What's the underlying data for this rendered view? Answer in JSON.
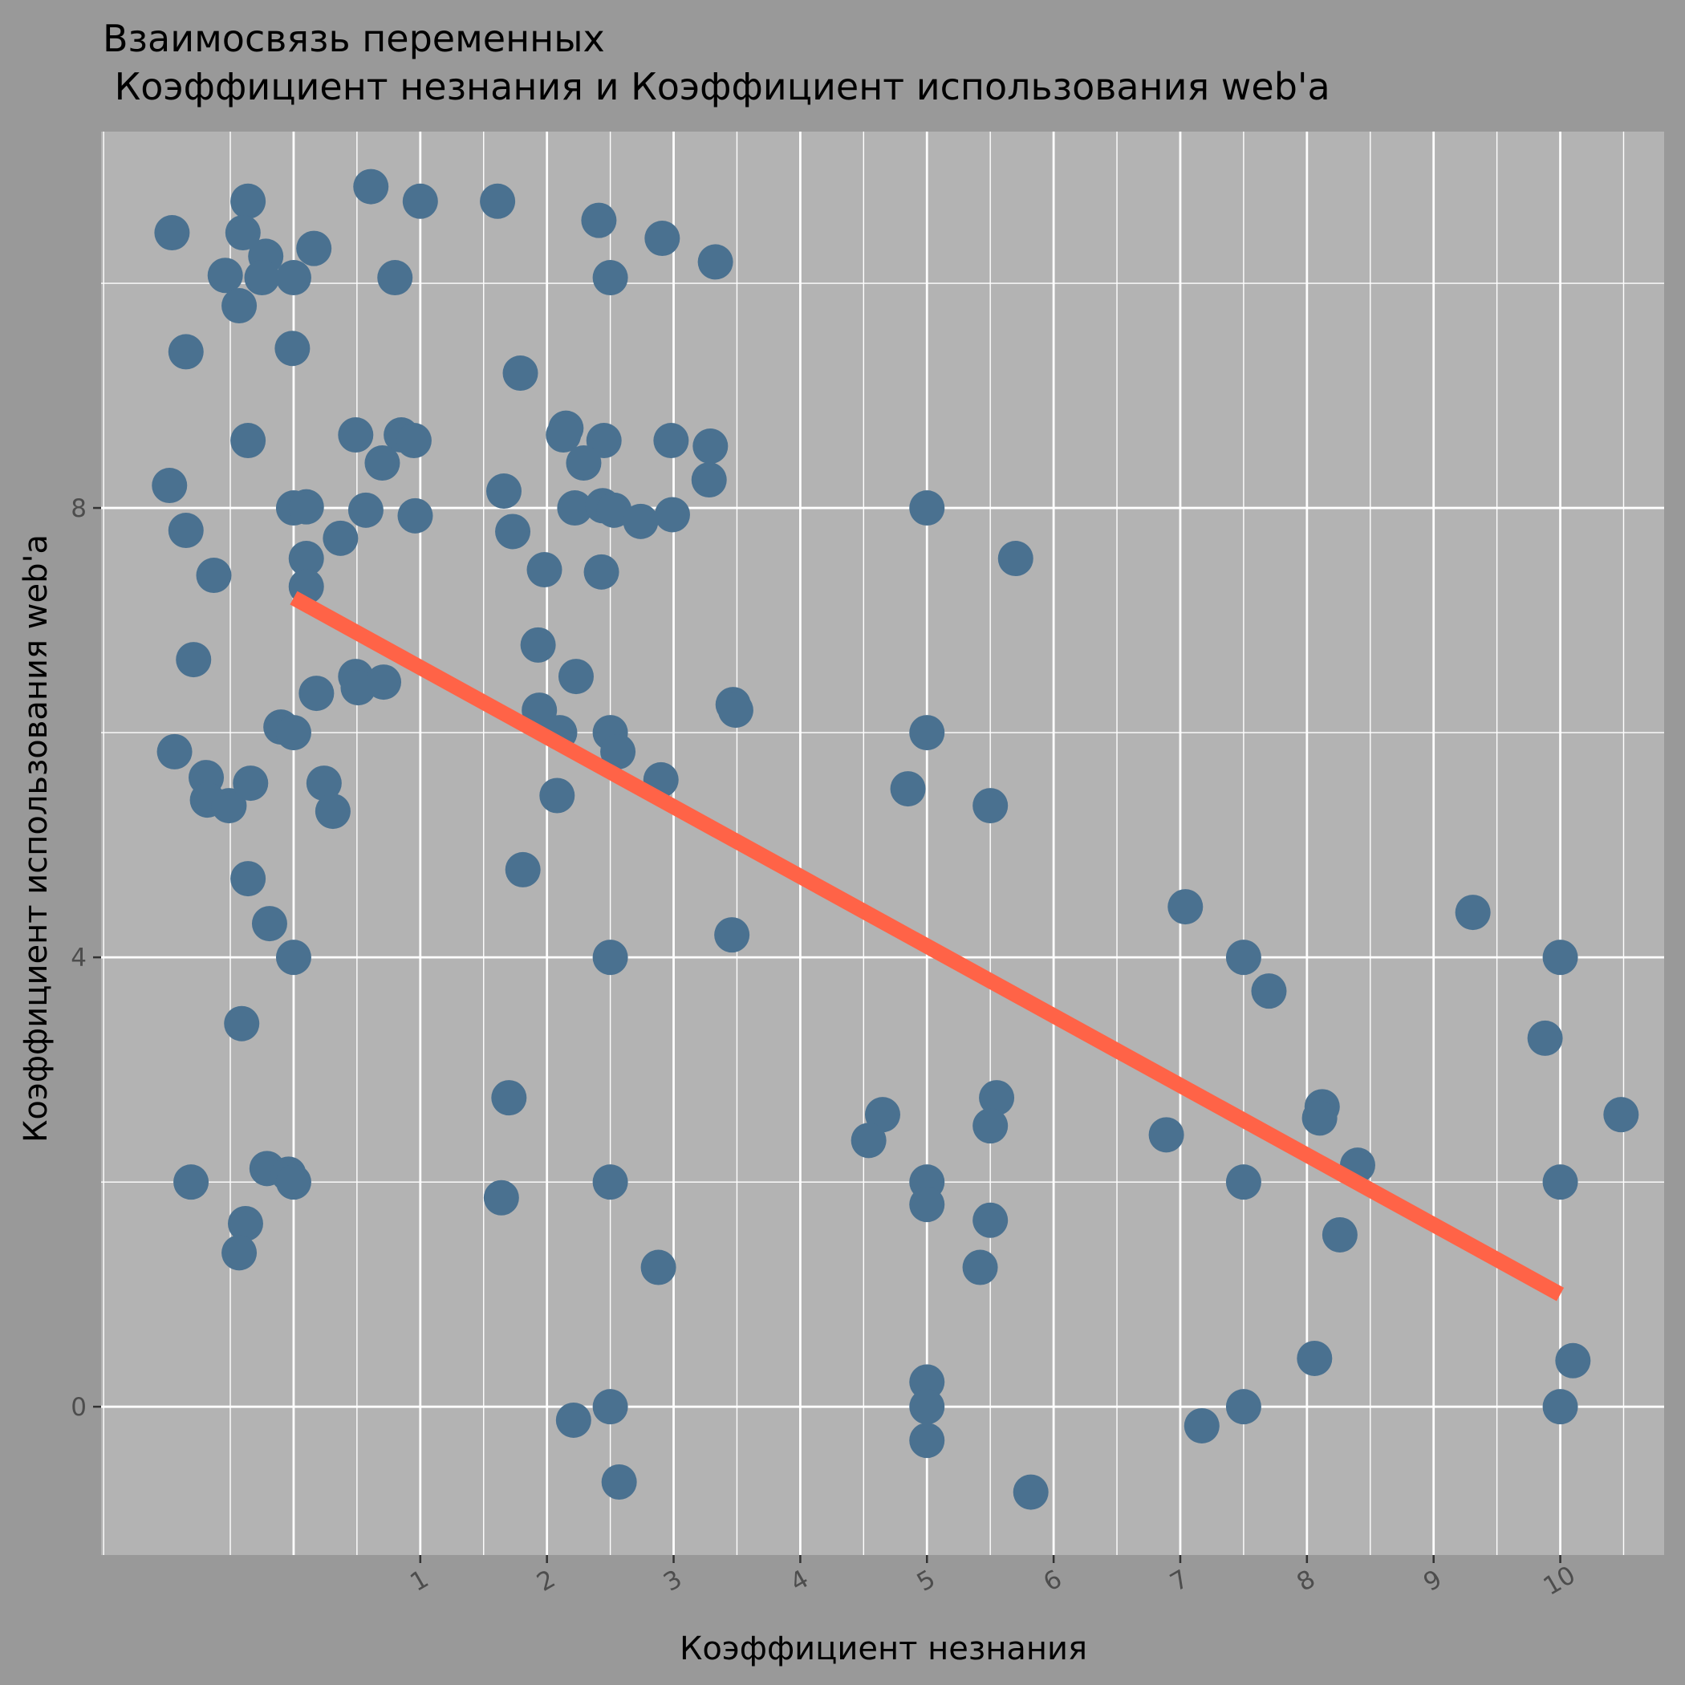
{
  "chart_data": {
    "type": "scatter",
    "title_lines": [
      "Взаимосвязь переменных",
      " Коэффициент незнания и Коэффициент использования web'a"
    ],
    "xlabel": "Коэффициент незнания",
    "ylabel": "Коэффициент использования web'a",
    "xlim": [
      -1.52,
      10.82
    ],
    "ylim": [
      -1.32,
      11.35
    ],
    "x_ticks": [
      1,
      2,
      3,
      4,
      5,
      6,
      7,
      8,
      9,
      10
    ],
    "y_ticks": [
      0,
      4,
      8
    ],
    "grid": true,
    "colors": {
      "points": "#4a7190",
      "fit_line": "#ff6347",
      "panel": "#b3b3b3",
      "background": "#999999",
      "grid": "#ffffff"
    },
    "points": [
      {
        "x": -0.96,
        "y": 10.45
      },
      {
        "x": -0.36,
        "y": 10.73
      },
      {
        "x": 1.61,
        "y": 10.73
      },
      {
        "x": 0.61,
        "y": 10.86
      },
      {
        "x": 1.0,
        "y": 10.73
      },
      {
        "x": -0.54,
        "y": 10.07
      },
      {
        "x": -0.4,
        "y": 10.45
      },
      {
        "x": -0.22,
        "y": 10.24
      },
      {
        "x": 0.16,
        "y": 10.31
      },
      {
        "x": -0.25,
        "y": 10.05
      },
      {
        "x": 0.0,
        "y": 10.05
      },
      {
        "x": 0.8,
        "y": 10.05
      },
      {
        "x": -0.43,
        "y": 9.8
      },
      {
        "x": -0.85,
        "y": 9.39
      },
      {
        "x": -0.01,
        "y": 9.42
      },
      {
        "x": 2.41,
        "y": 10.56
      },
      {
        "x": 2.5,
        "y": 10.05
      },
      {
        "x": 2.91,
        "y": 10.4
      },
      {
        "x": 3.33,
        "y": 10.19
      },
      {
        "x": 1.79,
        "y": 9.2
      },
      {
        "x": 0.49,
        "y": 8.65
      },
      {
        "x": 0.85,
        "y": 8.65
      },
      {
        "x": 0.95,
        "y": 8.6
      },
      {
        "x": 0.7,
        "y": 8.4
      },
      {
        "x": -0.36,
        "y": 8.6
      },
      {
        "x": -0.98,
        "y": 8.2
      },
      {
        "x": -0.85,
        "y": 7.8
      },
      {
        "x": 0.0,
        "y": 8.0
      },
      {
        "x": 0.1,
        "y": 8.01
      },
      {
        "x": 0.57,
        "y": 7.98
      },
      {
        "x": 0.96,
        "y": 7.93
      },
      {
        "x": 0.37,
        "y": 7.73
      },
      {
        "x": 0.1,
        "y": 7.55
      },
      {
        "x": 0.1,
        "y": 7.3
      },
      {
        "x": -0.63,
        "y": 7.4
      },
      {
        "x": -0.79,
        "y": 6.65
      },
      {
        "x": 0.49,
        "y": 6.5
      },
      {
        "x": 0.51,
        "y": 6.4
      },
      {
        "x": 0.71,
        "y": 6.45
      },
      {
        "x": 0.18,
        "y": 6.35
      },
      {
        "x": -0.1,
        "y": 6.05
      },
      {
        "x": 0.0,
        "y": 6.0
      },
      {
        "x": -0.94,
        "y": 5.83
      },
      {
        "x": -0.69,
        "y": 5.6
      },
      {
        "x": -0.68,
        "y": 5.4
      },
      {
        "x": -0.51,
        "y": 5.35
      },
      {
        "x": -0.34,
        "y": 5.55
      },
      {
        "x": 0.24,
        "y": 5.55
      },
      {
        "x": 0.31,
        "y": 5.3
      },
      {
        "x": 2.15,
        "y": 8.71
      },
      {
        "x": 2.13,
        "y": 8.65
      },
      {
        "x": 2.45,
        "y": 8.6
      },
      {
        "x": 2.29,
        "y": 8.4
      },
      {
        "x": 2.98,
        "y": 8.6
      },
      {
        "x": 3.29,
        "y": 8.55
      },
      {
        "x": 3.28,
        "y": 8.25
      },
      {
        "x": 1.66,
        "y": 8.15
      },
      {
        "x": 1.73,
        "y": 7.79
      },
      {
        "x": 2.22,
        "y": 8.0
      },
      {
        "x": 2.44,
        "y": 8.02
      },
      {
        "x": 2.53,
        "y": 7.98
      },
      {
        "x": 2.74,
        "y": 7.88
      },
      {
        "x": 2.99,
        "y": 7.94
      },
      {
        "x": 1.98,
        "y": 7.45
      },
      {
        "x": 2.43,
        "y": 7.43
      },
      {
        "x": 1.93,
        "y": 6.78
      },
      {
        "x": 2.23,
        "y": 6.5
      },
      {
        "x": 1.94,
        "y": 6.2
      },
      {
        "x": 2.1,
        "y": 6.0
      },
      {
        "x": 2.5,
        "y": 6.0
      },
      {
        "x": 2.56,
        "y": 5.83
      },
      {
        "x": 2.9,
        "y": 5.58
      },
      {
        "x": 2.08,
        "y": 5.44
      },
      {
        "x": 3.47,
        "y": 6.25
      },
      {
        "x": 3.49,
        "y": 6.2
      },
      {
        "x": 1.81,
        "y": 4.78
      },
      {
        "x": 3.46,
        "y": 4.2
      },
      {
        "x": 2.5,
        "y": 4.0
      },
      {
        "x": -0.36,
        "y": 4.7
      },
      {
        "x": -0.19,
        "y": 4.3
      },
      {
        "x": 0.0,
        "y": 4.0
      },
      {
        "x": -0.41,
        "y": 3.41
      },
      {
        "x": 1.7,
        "y": 2.75
      },
      {
        "x": -0.81,
        "y": 2.0
      },
      {
        "x": -0.21,
        "y": 2.12
      },
      {
        "x": -0.04,
        "y": 2.07
      },
      {
        "x": 0.0,
        "y": 2.0
      },
      {
        "x": -0.38,
        "y": 1.63
      },
      {
        "x": -0.43,
        "y": 1.37
      },
      {
        "x": 1.64,
        "y": 1.86
      },
      {
        "x": 2.5,
        "y": 2.0
      },
      {
        "x": 2.88,
        "y": 1.24
      },
      {
        "x": 2.21,
        "y": -0.12
      },
      {
        "x": 2.5,
        "y": 0.0
      },
      {
        "x": 2.57,
        "y": -0.67
      },
      {
        "x": 5.0,
        "y": 8.0
      },
      {
        "x": 5.7,
        "y": 7.55
      },
      {
        "x": 5.0,
        "y": 6.0
      },
      {
        "x": 4.85,
        "y": 5.5
      },
      {
        "x": 5.5,
        "y": 5.35
      },
      {
        "x": 4.65,
        "y": 2.6
      },
      {
        "x": 4.54,
        "y": 2.37
      },
      {
        "x": 5.55,
        "y": 2.75
      },
      {
        "x": 5.5,
        "y": 2.5
      },
      {
        "x": 5.0,
        "y": 2.0
      },
      {
        "x": 5.0,
        "y": 1.8
      },
      {
        "x": 5.5,
        "y": 1.66
      },
      {
        "x": 5.42,
        "y": 1.24
      },
      {
        "x": 5.0,
        "y": 0.22
      },
      {
        "x": 5.0,
        "y": 0.0
      },
      {
        "x": 5.0,
        "y": -0.3
      },
      {
        "x": 5.82,
        "y": -0.76
      },
      {
        "x": 7.04,
        "y": 4.45
      },
      {
        "x": 7.5,
        "y": 4.0
      },
      {
        "x": 7.7,
        "y": 3.7
      },
      {
        "x": 6.89,
        "y": 2.42
      },
      {
        "x": 7.5,
        "y": 2.0
      },
      {
        "x": 7.17,
        "y": -0.17
      },
      {
        "x": 7.5,
        "y": 0.0
      },
      {
        "x": 8.12,
        "y": 2.67
      },
      {
        "x": 8.1,
        "y": 2.57
      },
      {
        "x": 8.4,
        "y": 2.15
      },
      {
        "x": 8.26,
        "y": 1.53
      },
      {
        "x": 8.06,
        "y": 0.43
      },
      {
        "x": 9.31,
        "y": 4.4
      },
      {
        "x": 10.0,
        "y": 4.0
      },
      {
        "x": 9.88,
        "y": 3.28
      },
      {
        "x": 10.48,
        "y": 2.6
      },
      {
        "x": 10.0,
        "y": 2.0
      },
      {
        "x": 10.1,
        "y": 0.41
      },
      {
        "x": 10.0,
        "y": 0.0
      }
    ],
    "fit_line": {
      "x": [
        0,
        10
      ],
      "y": [
        7.2,
        1.0
      ]
    }
  }
}
